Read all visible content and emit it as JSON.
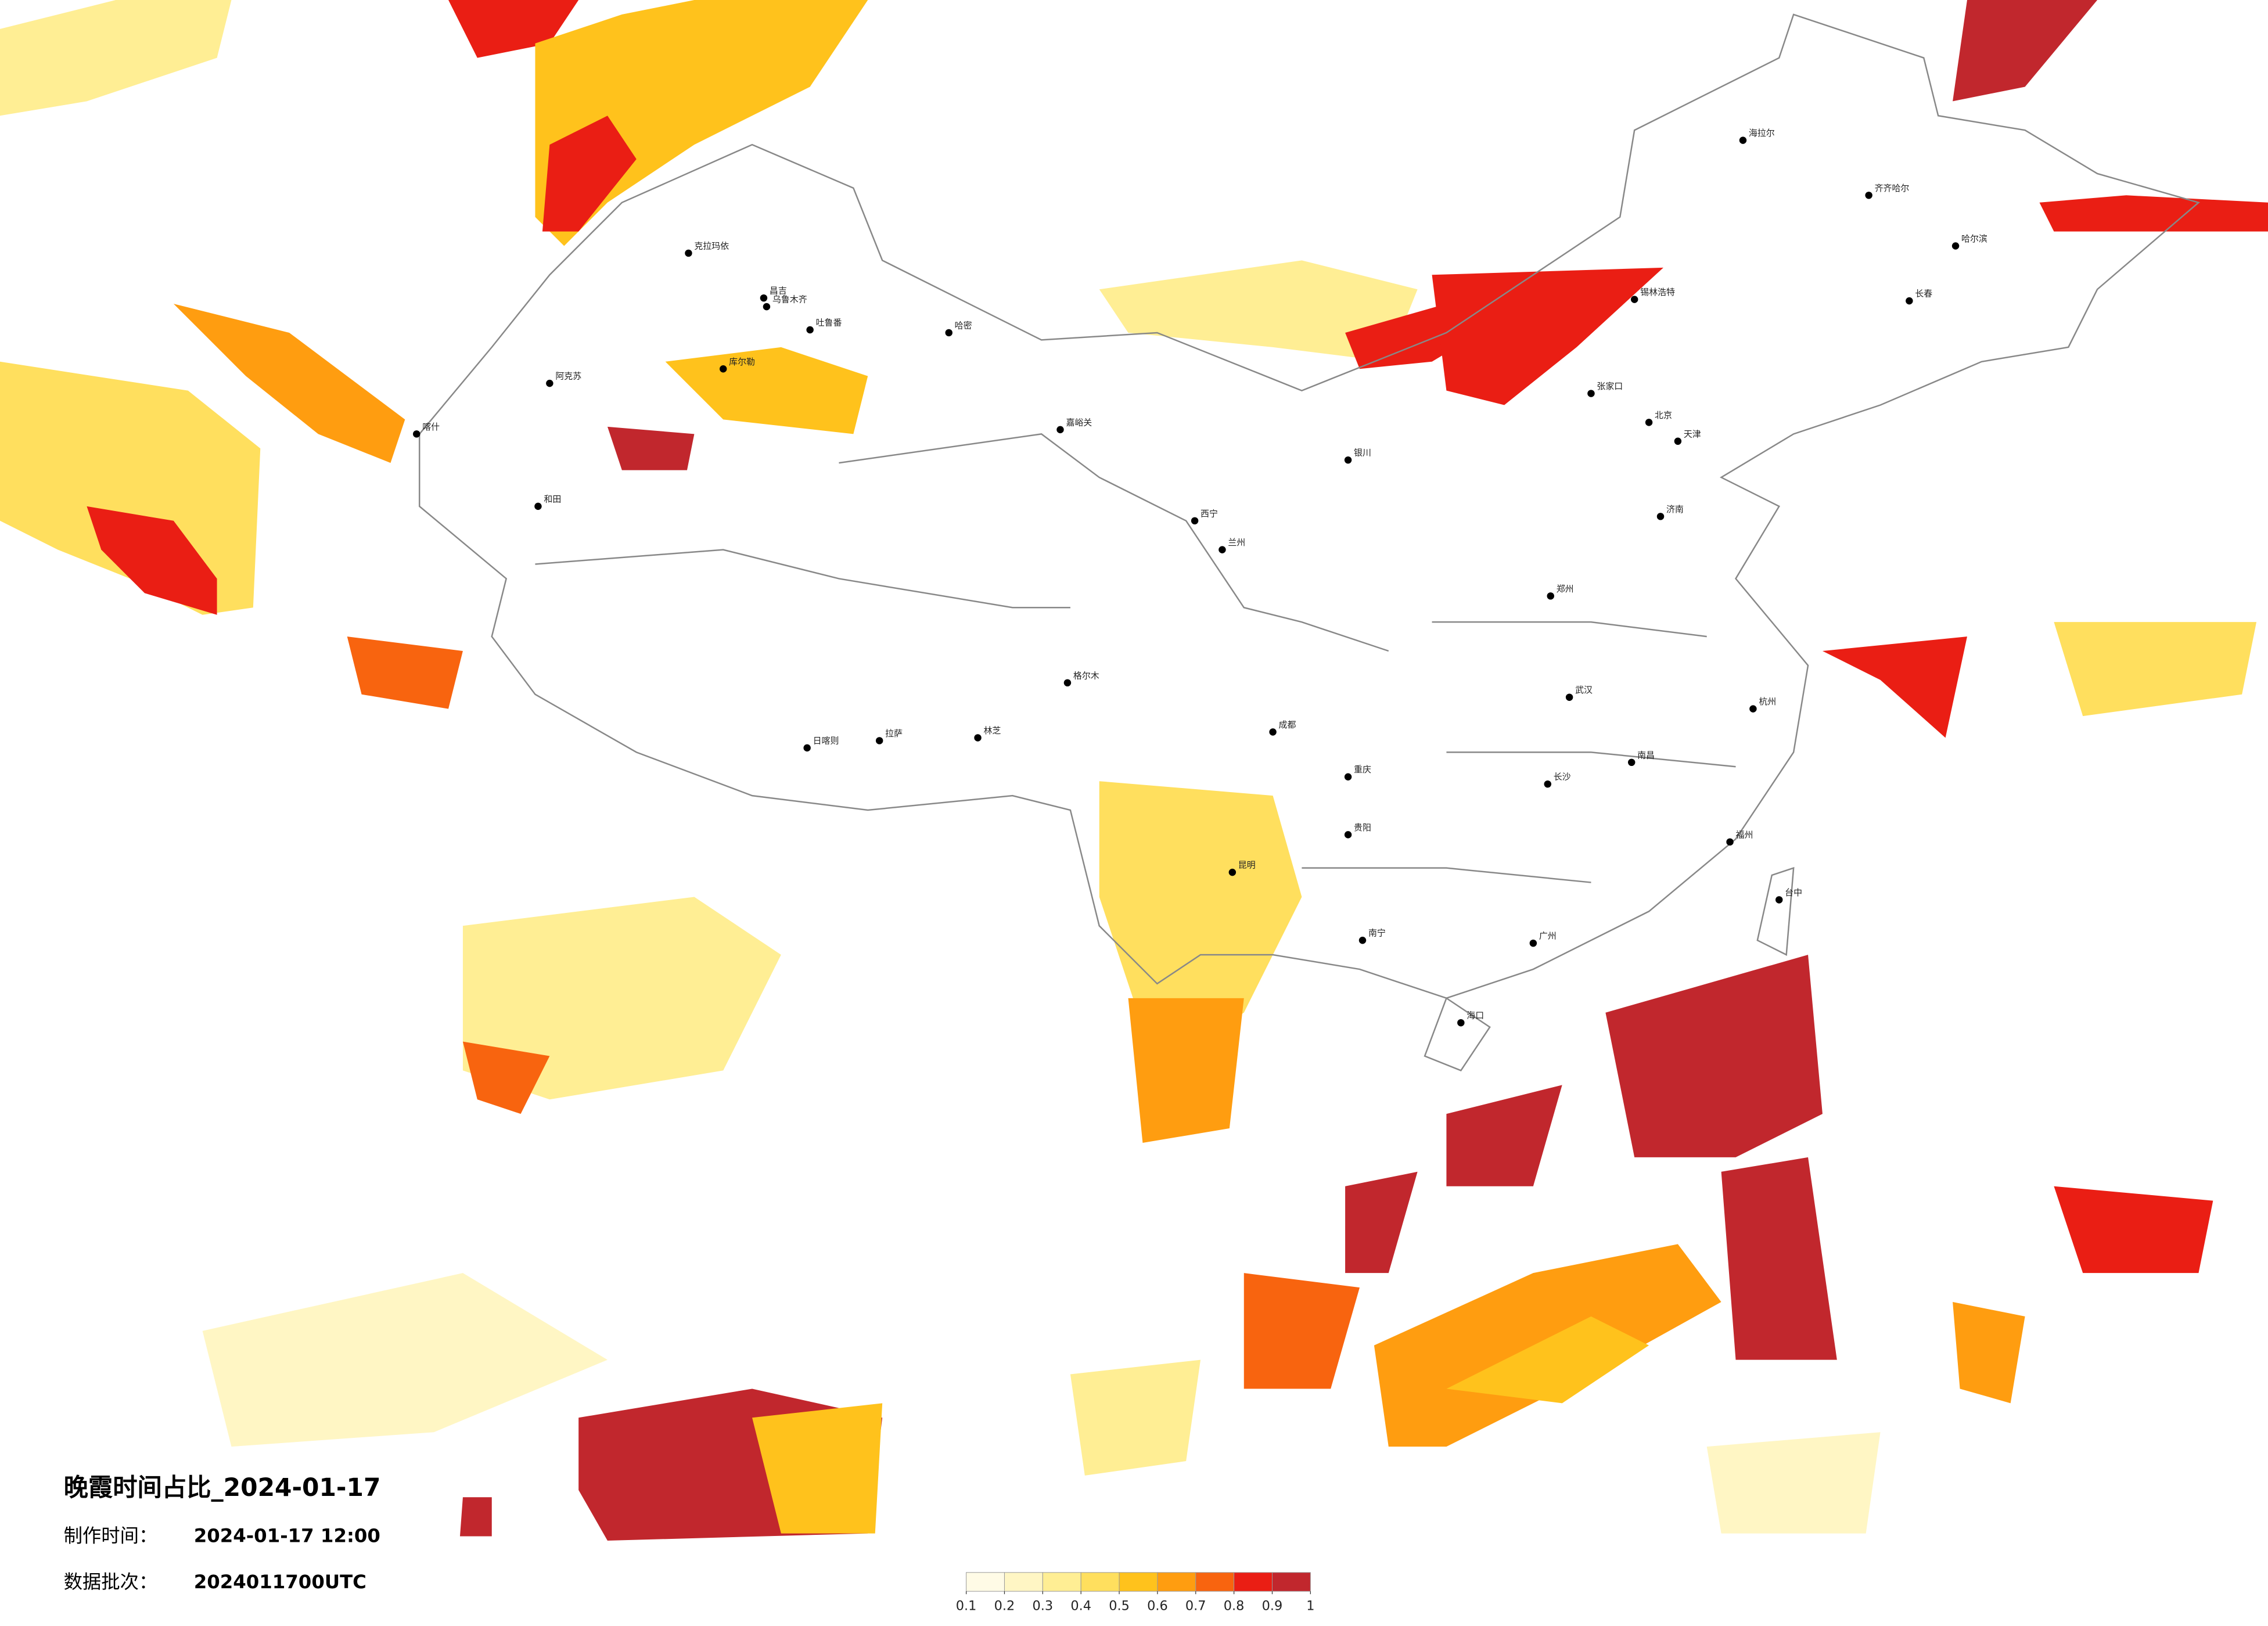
{
  "title": "晚霞时间占比_2024-01-17",
  "made_time": {
    "label": "制作时间：",
    "value": "2024-01-17 12:00"
  },
  "data_batch": {
    "label": "数据批次：",
    "value": "2024011700UTC"
  },
  "legend": {
    "ticks": [
      0.1,
      0.2,
      0.3,
      0.4,
      0.5,
      0.6,
      0.7,
      0.8,
      0.9,
      1
    ],
    "colors": [
      "#fffbe6",
      "#fff6c4",
      "#ffee94",
      "#ffdf5e",
      "#ffc21c",
      "#ff9d10",
      "#f8640f",
      "#ea1e14",
      "#c1272d"
    ]
  },
  "cities": [
    "克拉玛依",
    "昌吉",
    "乌鲁木齐",
    "吐鲁番",
    "哈密",
    "库尔勒",
    "阿克苏",
    "和田",
    "喀什",
    "海拉尔",
    "齐齐哈尔",
    "哈尔滨",
    "长春",
    "锡林浩特",
    "张家口",
    "北京",
    "天津",
    "拉萨",
    "日喀则",
    "西宁",
    "兰州",
    "银川",
    "成都",
    "重庆",
    "昆明",
    "贵阳",
    "南宁",
    "广州",
    "武汉",
    "长沙",
    "南昌",
    "杭州",
    "福州",
    "台中",
    "海口",
    "郑州",
    "济南",
    "格尔木",
    "林芝",
    "嘉峪关"
  ]
}
